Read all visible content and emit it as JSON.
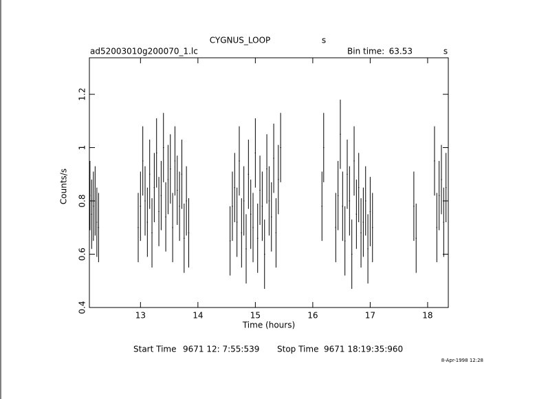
{
  "chart_data": {
    "type": "errorbar",
    "title": "CYGNUS_LOOP",
    "title_unit": "s",
    "file": "ad52003010g200070_1.lc",
    "bin_time_label": "Bin time:",
    "bin_time": 63.53,
    "bin_time_unit": "s",
    "x_label": "Time (hours)",
    "y_label": "Counts/s",
    "x": [
      12.12,
      12.15,
      12.18,
      12.21,
      12.24,
      12.27,
      12.96,
      13,
      13.04,
      13.08,
      13.12,
      13.16,
      13.2,
      13.24,
      13.28,
      13.32,
      13.36,
      13.4,
      13.44,
      13.48,
      13.52,
      13.56,
      13.6,
      13.64,
      13.68,
      13.72,
      13.76,
      13.8,
      13.84,
      14.56,
      14.6,
      14.64,
      14.68,
      14.72,
      14.76,
      14.8,
      14.84,
      14.88,
      14.92,
      14.96,
      15,
      15.04,
      15.08,
      15.12,
      15.16,
      15.2,
      15.24,
      15.28,
      15.32,
      15.36,
      15.4,
      15.44,
      16.16,
      16.19,
      16.4,
      16.44,
      16.48,
      16.52,
      16.56,
      16.6,
      16.64,
      16.68,
      16.72,
      16.76,
      16.8,
      16.84,
      16.88,
      16.92,
      16.96,
      17,
      17.04,
      17.76,
      17.8,
      18.12,
      18.16,
      18.2,
      18.24,
      18.28,
      18.32
    ],
    "series": [
      {
        "color": "#000000",
        "values": [
          0.82,
          0.75,
          0.78,
          0.8,
          0.72,
          0.7,
          0.7,
          0.78,
          0.95,
          0.8,
          0.72,
          0.9,
          0.68,
          0.85,
          0.98,
          0.76,
          0.82,
          1.0,
          0.74,
          0.88,
          0.92,
          0.7,
          0.95,
          0.84,
          0.78,
          0.9,
          0.66,
          0.8,
          0.68,
          0.65,
          0.78,
          0.85,
          0.72,
          0.95,
          0.68,
          0.8,
          0.62,
          0.9,
          0.75,
          0.7,
          0.98,
          0.66,
          0.84,
          0.78,
          0.6,
          0.92,
          0.8,
          0.74,
          0.96,
          0.68,
          0.88,
          1.0,
          0.78,
          1.0,
          0.7,
          0.82,
          1.05,
          0.78,
          0.65,
          0.9,
          0.8,
          0.6,
          0.95,
          0.75,
          0.85,
          0.68,
          0.72,
          0.8,
          0.62,
          0.76,
          0.7,
          0.78,
          0.66,
          0.95,
          0.7,
          0.82,
          0.88,
          0.72,
          0.85
        ]
      }
    ],
    "yerr": 0.13,
    "xlim": [
      12.11,
      18.36
    ],
    "ylim": [
      0.4,
      1.337
    ],
    "xticks": [
      13,
      14,
      15,
      16,
      17,
      18
    ],
    "yticks": [
      0.4,
      0.6,
      0.8,
      1,
      1.2
    ],
    "start_label": "Start Time",
    "start_time": "9671 12: 7:55:539",
    "stop_label": "Stop Time",
    "stop_time": "9671 18:19:35:960",
    "date": "8-Apr-1998 12:28"
  }
}
